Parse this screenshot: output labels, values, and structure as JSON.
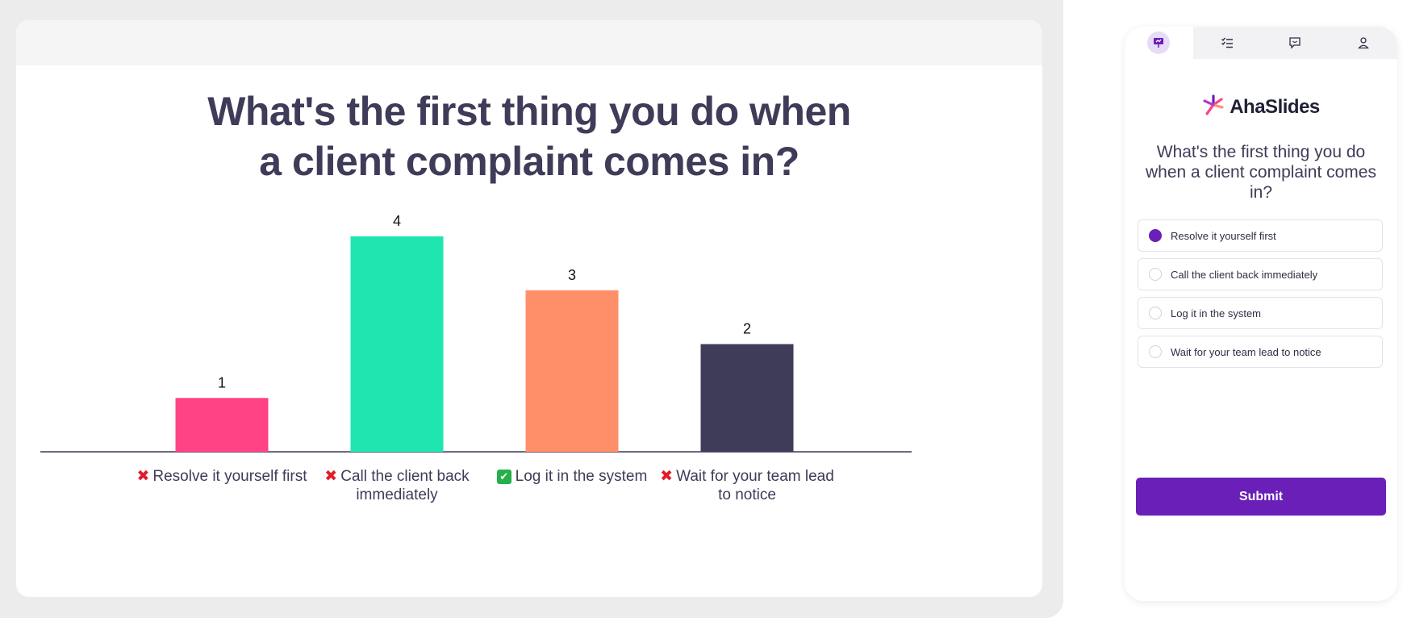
{
  "slide": {
    "title": "What's the first thing you do when a client complaint comes in?"
  },
  "chart_data": {
    "type": "bar",
    "categories": [
      "Resolve it yourself first",
      "Call the client back immediately",
      "Log it in the system",
      "Wait for your team lead to notice"
    ],
    "values": [
      1,
      4,
      3,
      2
    ],
    "markers": [
      "incorrect",
      "incorrect",
      "correct",
      "incorrect"
    ],
    "colors": [
      "#ff4384",
      "#1fe6b0",
      "#ff8f68",
      "#3e3c58"
    ],
    "title": "What's the first thing you do when a client complaint comes in?",
    "xlabel": "",
    "ylabel": "",
    "grid": false,
    "legend": "none"
  },
  "audience": {
    "tabs": [
      {
        "icon": "presentation-icon",
        "active": true
      },
      {
        "icon": "checklist-icon",
        "active": false
      },
      {
        "icon": "chat-icon",
        "active": false
      },
      {
        "icon": "user-icon",
        "active": false
      }
    ],
    "brand": "AhaSlides",
    "question": "What's the first thing you do when a client complaint comes in?",
    "options": [
      {
        "label": "Resolve it yourself first",
        "selected": true
      },
      {
        "label": "Call the client back immediately",
        "selected": false
      },
      {
        "label": "Log it in the system",
        "selected": false
      },
      {
        "label": "Wait for your team lead to notice",
        "selected": false
      }
    ],
    "submit_label": "Submit",
    "accent": "#6a1fb8"
  }
}
